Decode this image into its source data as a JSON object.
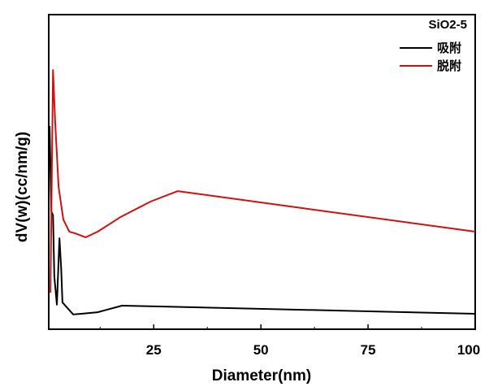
{
  "chart_data": {
    "type": "line",
    "title": "",
    "xlabel": "Diameter(nm)",
    "ylabel": "dV(w)(cc/nm/g)",
    "xlim": [
      0.5,
      100
    ],
    "ylim": [
      0,
      100
    ],
    "xticks": [
      25,
      50,
      75,
      100
    ],
    "yticks": [],
    "grid": false,
    "legend": {
      "title": "SiO2-5",
      "placement": "top-right"
    },
    "series": [
      {
        "name": "吸附",
        "color": "#000000",
        "x": [
          0.7,
          1.1,
          1.5,
          1.8,
          2.4,
          3.0,
          3.4,
          3.7,
          4.7,
          6.2,
          8.1,
          11.9,
          17.6,
          27.2,
          100
        ],
        "y": [
          64.6,
          37.5,
          36.2,
          16.8,
          7.8,
          28.9,
          19.4,
          8.5,
          7.0,
          4.7,
          4.9,
          5.4,
          7.5,
          7.2,
          4.9
        ]
      },
      {
        "name": "脱附",
        "color": "#d01010",
        "x": [
          0.9,
          1.5,
          2.0,
          2.8,
          3.9,
          5.3,
          6.6,
          9.1,
          11.9,
          17.3,
          24.3,
          30.6,
          100
        ],
        "y": [
          11.6,
          82.4,
          65.9,
          45.2,
          34.9,
          31.0,
          30.5,
          29.2,
          31.0,
          35.7,
          40.6,
          43.9,
          31.0
        ]
      }
    ]
  }
}
